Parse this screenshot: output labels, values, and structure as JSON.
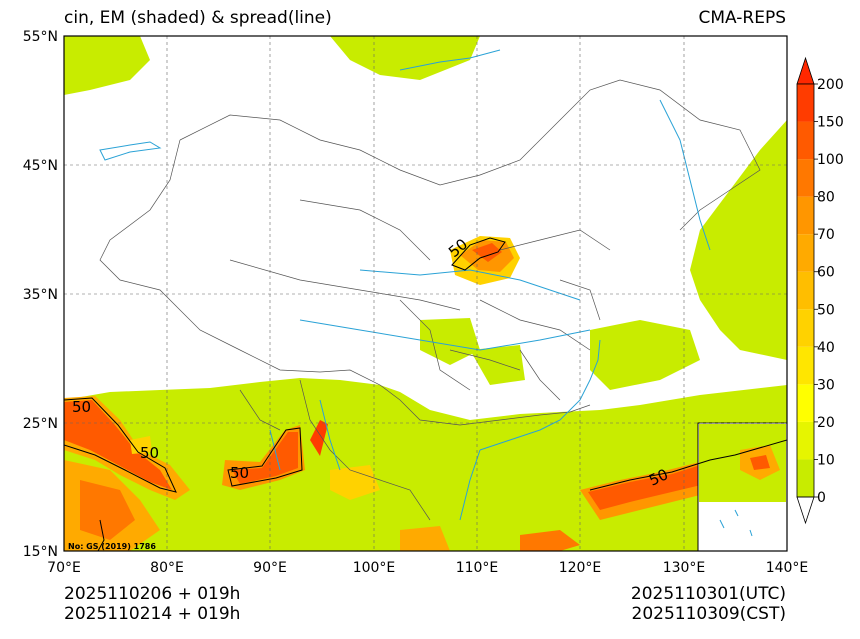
{
  "title": "cin, EM (shaded) & spread(line)",
  "source": "CMA-REPS",
  "notice": "No: GS (2019) 1786",
  "lat_labels": [
    "55°N",
    "45°N",
    "35°N",
    "25°N",
    "15°N"
  ],
  "lon_labels": [
    "70°E",
    "80°E",
    "90°E",
    "100°E",
    "110°E",
    "120°E",
    "130°E",
    "140°E"
  ],
  "colorbar": {
    "levels": [
      "0",
      "10",
      "20",
      "30",
      "40",
      "50",
      "60",
      "70",
      "80",
      "100",
      "150",
      "200"
    ],
    "colors": [
      "#c8ec00",
      "#e6f500",
      "#ffff00",
      "#ffe600",
      "#ffd200",
      "#ffbe00",
      "#ffaa00",
      "#ff9600",
      "#ff7800",
      "#ff5a00",
      "#ff3c00"
    ],
    "extend_top_color": "#ff2800"
  },
  "contour_labels": [
    "50",
    "50",
    "50",
    "50",
    "50",
    "50"
  ],
  "init_time": "2025110206  +  019h",
  "init_time_cst": "2025110214  +  019h",
  "valid_utc": "2025110301(UTC)",
  "valid_cst": "2025110309(CST)"
}
